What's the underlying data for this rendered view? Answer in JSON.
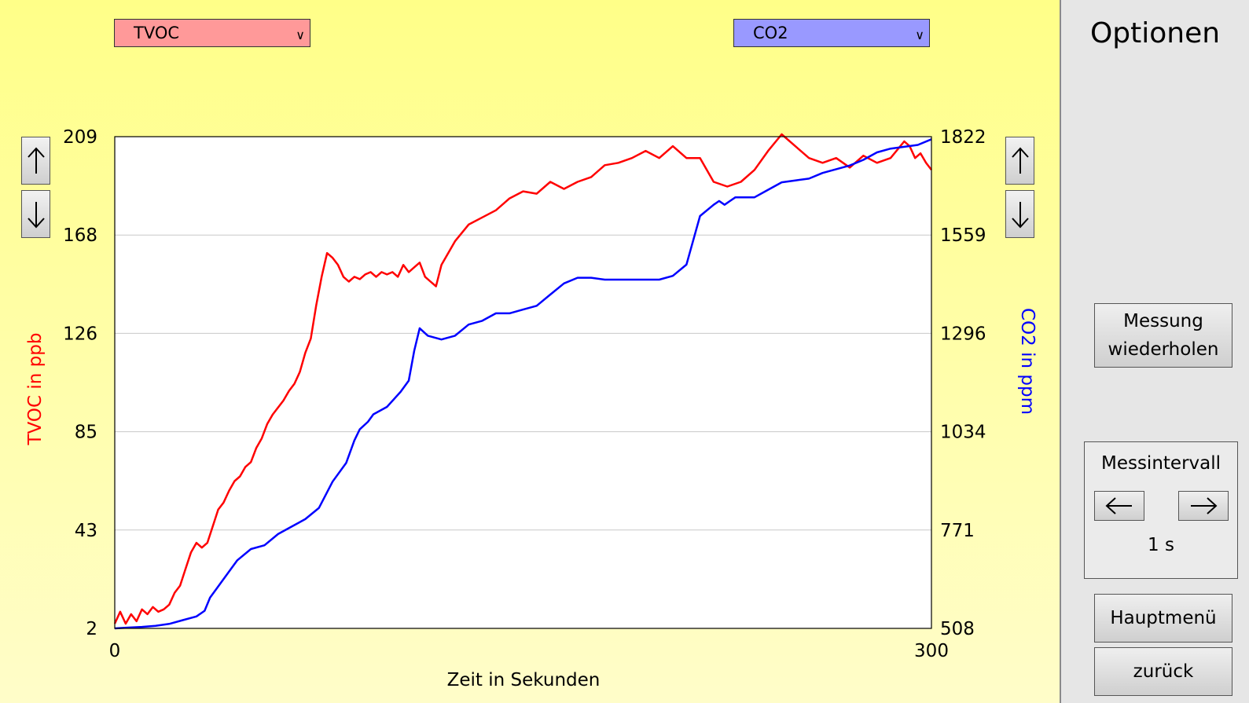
{
  "toolbar": {
    "left_select": "TVOC",
    "right_select": "CO2"
  },
  "sidebar": {
    "title": "Optionen",
    "repeat_button": [
      "Messung",
      "wiederholen"
    ],
    "interval_label": "Messintervall",
    "interval_value": "1 s",
    "main_menu_button": "Hauptmenü",
    "back_button": "zurück"
  },
  "icons": {
    "left_up": "arrow-up-icon",
    "left_down": "arrow-down-icon",
    "right_up": "arrow-up-icon",
    "right_down": "arrow-down-icon",
    "interval_prev": "arrow-left-icon",
    "interval_next": "arrow-right-icon"
  },
  "colors": {
    "tvoc": "#ff0000",
    "co2": "#0000ff",
    "tvoc_select": "#ff9999",
    "co2_select": "#9999ff",
    "background_top": "#ffff88",
    "background_bottom": "#fffdc9"
  },
  "chart_data": {
    "type": "line",
    "xlabel": "Zeit in Sekunden",
    "xlim": [
      0,
      300
    ],
    "x_ticks": [
      "0",
      "300"
    ],
    "grid": true,
    "left_axis": {
      "label": "TVOC in ppb",
      "ticks": [
        "209",
        "168",
        "126",
        "85",
        "43",
        "2"
      ],
      "ylim": [
        2,
        209
      ]
    },
    "right_axis": {
      "label": "CO2 in ppm",
      "ticks": [
        "1822",
        "1559",
        "1296",
        "1034",
        "771",
        "508"
      ],
      "ylim": [
        508,
        1822
      ]
    },
    "series": [
      {
        "name": "TVOC",
        "axis": "left",
        "color": "#ff0000",
        "x": [
          0,
          2,
          4,
          6,
          8,
          10,
          12,
          14,
          16,
          18,
          20,
          22,
          24,
          26,
          28,
          30,
          32,
          34,
          36,
          38,
          40,
          42,
          44,
          46,
          48,
          50,
          52,
          54,
          56,
          58,
          60,
          62,
          64,
          66,
          68,
          70,
          72,
          74,
          76,
          78,
          80,
          82,
          84,
          86,
          88,
          90,
          92,
          94,
          96,
          98,
          100,
          102,
          104,
          106,
          108,
          110,
          112,
          114,
          116,
          118,
          120,
          125,
          130,
          135,
          140,
          145,
          150,
          155,
          160,
          165,
          170,
          175,
          180,
          185,
          190,
          195,
          200,
          205,
          210,
          215,
          220,
          225,
          230,
          235,
          240,
          245,
          250,
          255,
          260,
          265,
          270,
          275,
          280,
          285,
          290,
          292,
          294,
          296,
          298,
          300
        ],
        "y": [
          4,
          9,
          4,
          8,
          5,
          10,
          8,
          11,
          9,
          10,
          12,
          17,
          20,
          27,
          34,
          38,
          36,
          38,
          45,
          52,
          55,
          60,
          64,
          66,
          70,
          72,
          78,
          82,
          88,
          92,
          95,
          98,
          102,
          105,
          110,
          118,
          124,
          138,
          150,
          160,
          158,
          155,
          150,
          148,
          150,
          149,
          151,
          152,
          150,
          152,
          151,
          152,
          150,
          155,
          152,
          154,
          156,
          150,
          148,
          146,
          155,
          165,
          172,
          175,
          178,
          183,
          186,
          185,
          190,
          187,
          190,
          192,
          197,
          198,
          200,
          203,
          200,
          205,
          200,
          200,
          190,
          188,
          190,
          195,
          203,
          210,
          205,
          200,
          198,
          200,
          196,
          201,
          198,
          200,
          207,
          205,
          200,
          202,
          198,
          195
        ]
      },
      {
        "name": "CO2",
        "axis": "right",
        "color": "#0000ff",
        "x": [
          0,
          5,
          10,
          15,
          20,
          25,
          30,
          33,
          35,
          38,
          40,
          45,
          50,
          55,
          60,
          65,
          70,
          75,
          80,
          85,
          88,
          90,
          93,
          95,
          100,
          105,
          108,
          110,
          112,
          115,
          120,
          125,
          130,
          135,
          140,
          145,
          150,
          155,
          160,
          165,
          170,
          175,
          180,
          185,
          190,
          195,
          200,
          205,
          210,
          215,
          220,
          222,
          224,
          226,
          228,
          230,
          235,
          240,
          245,
          250,
          255,
          260,
          265,
          270,
          275,
          280,
          285,
          290,
          295,
          300
        ],
        "y": [
          508,
          510,
          512,
          515,
          520,
          530,
          540,
          555,
          590,
          620,
          640,
          690,
          720,
          730,
          760,
          780,
          800,
          830,
          900,
          950,
          1010,
          1040,
          1060,
          1080,
          1100,
          1140,
          1170,
          1250,
          1310,
          1290,
          1280,
          1290,
          1320,
          1330,
          1350,
          1350,
          1360,
          1370,
          1400,
          1430,
          1445,
          1445,
          1440,
          1440,
          1440,
          1440,
          1440,
          1450,
          1480,
          1610,
          1640,
          1650,
          1640,
          1650,
          1660,
          1660,
          1660,
          1680,
          1700,
          1705,
          1710,
          1725,
          1735,
          1745,
          1760,
          1780,
          1790,
          1795,
          1800,
          1815
        ]
      }
    ]
  }
}
